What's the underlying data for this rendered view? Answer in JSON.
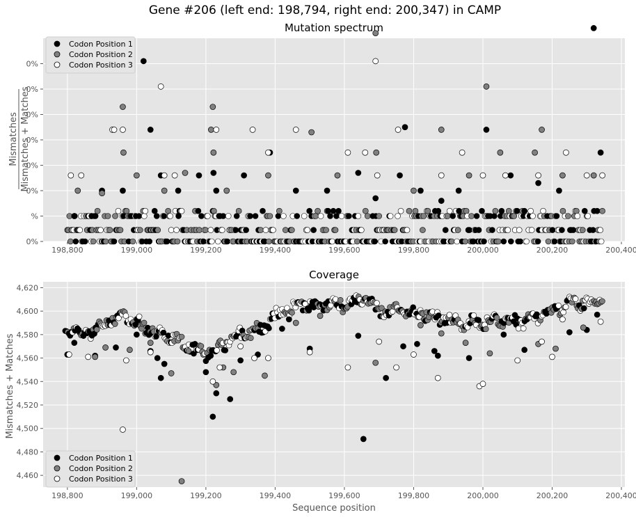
{
  "figure": {
    "title": "Gene #206 (left end: 198,794, right end: 200,347) in CAMP"
  },
  "legend": {
    "entries": [
      {
        "name": "Codon Position 1",
        "color": "#000000"
      },
      {
        "name": "Codon Position 2",
        "color": "#808080"
      },
      {
        "name": "Codon Position 3",
        "color": "#ffffff"
      }
    ],
    "placement_top": "upper-left",
    "placement_bottom": "lower-left"
  },
  "chart_data": [
    {
      "type": "scatter",
      "title": "Mutation spectrum",
      "ylabel_numerator": "Mismatches",
      "ylabel_denominator": "Mismatches + Matches",
      "xlabel": "",
      "xlim": [
        198730,
        200410
      ],
      "ylim": [
        0,
        8.0
      ],
      "xticks": [
        198800,
        199000,
        199200,
        199400,
        199600,
        199800,
        200000,
        200200,
        200400
      ],
      "xtick_labels": [
        "198,800",
        "199,000",
        "199,200",
        "199,400",
        "199,600",
        "199,800",
        "200,000",
        "200,200",
        "200,400"
      ],
      "yticks": [
        0,
        1,
        2,
        3,
        4,
        5,
        6,
        7
      ],
      "ytick_labels": [
        "0%",
        "%",
        "0%",
        "0%",
        "0%",
        "0%",
        "0%",
        "0%"
      ],
      "grid": true,
      "series": [
        {
          "name": "Codon Position 1",
          "color": "#000000",
          "points": [
            [
              198820,
              1
            ],
            [
              198870,
              1
            ],
            [
              198900,
              2
            ],
            [
              198960,
              2
            ],
            [
              199020,
              7.1
            ],
            [
              199040,
              4.4
            ],
            [
              199070,
              2.6
            ],
            [
              199120,
              2
            ],
            [
              199180,
              2.6
            ],
            [
              199222,
              2.7
            ],
            [
              199230,
              2
            ],
            [
              199310,
              2.6
            ],
            [
              199385,
              3.5
            ],
            [
              199460,
              2
            ],
            [
              199550,
              2
            ],
            [
              199640,
              2.7
            ],
            [
              199690,
              1.7
            ],
            [
              199760,
              2.6
            ],
            [
              199775,
              4.5
            ],
            [
              199820,
              2
            ],
            [
              199880,
              1.6
            ],
            [
              199930,
              2
            ],
            [
              200010,
              4.4
            ],
            [
              200080,
              2.6
            ],
            [
              200160,
              2.3
            ],
            [
              200220,
              2
            ],
            [
              200320,
              8.4
            ],
            [
              200340,
              3.5
            ]
          ]
        },
        {
          "name": "Codon Position 2",
          "color": "#808080",
          "points": [
            [
              198830,
              2
            ],
            [
              198900,
              1.9
            ],
            [
              198960,
              5.3
            ],
            [
              198962,
              3.5
            ],
            [
              199000,
              2.6
            ],
            [
              199080,
              2
            ],
            [
              199140,
              2.7
            ],
            [
              199215,
              4.4
            ],
            [
              199220,
              5.3
            ],
            [
              199222,
              3.5
            ],
            [
              199260,
              2
            ],
            [
              199380,
              2.6
            ],
            [
              199505,
              4.3
            ],
            [
              199580,
              2.6
            ],
            [
              199690,
              8.2
            ],
            [
              199692,
              3.5
            ],
            [
              199800,
              2
            ],
            [
              199880,
              4.4
            ],
            [
              199960,
              2.6
            ],
            [
              200010,
              6.1
            ],
            [
              200050,
              3.5
            ],
            [
              200150,
              3.5
            ],
            [
              200170,
              4.4
            ],
            [
              200230,
              2.6
            ],
            [
              200320,
              2.6
            ]
          ]
        },
        {
          "name": "Codon Position 3",
          "color": "#ffffff",
          "points": [
            [
              198810,
              2.6
            ],
            [
              198840,
              2.6
            ],
            [
              198930,
              4.4
            ],
            [
              198935,
              4.4
            ],
            [
              198960,
              4.4
            ],
            [
              199070,
              6.1
            ],
            [
              199080,
              2.6
            ],
            [
              199110,
              2.6
            ],
            [
              199230,
              4.4
            ],
            [
              199335,
              4.4
            ],
            [
              199380,
              3.5
            ],
            [
              199460,
              4.4
            ],
            [
              199610,
              3.5
            ],
            [
              199660,
              3.5
            ],
            [
              199690,
              7.1
            ],
            [
              199695,
              2.6
            ],
            [
              199755,
              4.4
            ],
            [
              199880,
              2.6
            ],
            [
              199940,
              3.5
            ],
            [
              200000,
              2.6
            ],
            [
              200065,
              2.6
            ],
            [
              200160,
              2.6
            ],
            [
              200240,
              3.5
            ],
            [
              200300,
              2.6
            ],
            [
              200345,
              2.6
            ]
          ]
        }
      ]
    },
    {
      "type": "scatter",
      "title": "Coverage",
      "ylabel": "Mismatches + Matches",
      "xlabel": "Sequence position",
      "xlim": [
        198730,
        200410
      ],
      "ylim": [
        4450,
        4625
      ],
      "xticks": [
        198800,
        199000,
        199200,
        199400,
        199600,
        199800,
        200000,
        200200,
        200400
      ],
      "xtick_labels": [
        "198,800",
        "199,000",
        "199,200",
        "199,400",
        "199,600",
        "199,800",
        "200,000",
        "200,200",
        "200,400"
      ],
      "yticks": [
        4460,
        4480,
        4500,
        4520,
        4540,
        4560,
        4580,
        4600,
        4620
      ],
      "ytick_labels": [
        "4,460",
        "4,480",
        "4,500",
        "4,520",
        "4,540",
        "4,560",
        "4,580",
        "4,600",
        "4,620"
      ],
      "grid": true,
      "trend": [
        [
          198794,
          4585
        ],
        [
          198850,
          4580
        ],
        [
          198900,
          4588
        ],
        [
          198960,
          4596
        ],
        [
          199000,
          4590
        ],
        [
          199060,
          4580
        ],
        [
          199120,
          4575
        ],
        [
          199160,
          4568
        ],
        [
          199200,
          4563
        ],
        [
          199240,
          4570
        ],
        [
          199300,
          4580
        ],
        [
          199360,
          4585
        ],
        [
          199420,
          4600
        ],
        [
          199480,
          4605
        ],
        [
          199540,
          4606
        ],
        [
          199600,
          4605
        ],
        [
          199660,
          4612
        ],
        [
          199700,
          4600
        ],
        [
          199760,
          4602
        ],
        [
          199820,
          4598
        ],
        [
          199880,
          4593
        ],
        [
          199940,
          4590
        ],
        [
          200000,
          4590
        ],
        [
          200060,
          4592
        ],
        [
          200120,
          4590
        ],
        [
          200180,
          4598
        ],
        [
          200240,
          4605
        ],
        [
          200300,
          4608
        ],
        [
          200347,
          4610
        ]
      ],
      "series": [
        {
          "name": "Codon Position 1",
          "color": "#000000",
          "points": [
            [
              198800,
              4563
            ],
            [
              198820,
              4573
            ],
            [
              198880,
              4562
            ],
            [
              198940,
              4569
            ],
            [
              199000,
              4580
            ],
            [
              199040,
              4566
            ],
            [
              199060,
              4560
            ],
            [
              199070,
              4543
            ],
            [
              199080,
              4555
            ],
            [
              199200,
              4548
            ],
            [
              199220,
              4510
            ],
            [
              199230,
              4530
            ],
            [
              199270,
              4525
            ],
            [
              199300,
              4558
            ],
            [
              199350,
              4563
            ],
            [
              199420,
              4585
            ],
            [
              199440,
              4593
            ],
            [
              199500,
              4568
            ],
            [
              199640,
              4579
            ],
            [
              199655,
              4491
            ],
            [
              199720,
              4543
            ],
            [
              199770,
              4570
            ],
            [
              199810,
              4572
            ],
            [
              199860,
              4566
            ],
            [
              199870,
              4562
            ],
            [
              199960,
              4560
            ],
            [
              200060,
              4580
            ],
            [
              200120,
              4567
            ],
            [
              200250,
              4582
            ],
            [
              200300,
              4584
            ],
            [
              200330,
              4597
            ]
          ]
        },
        {
          "name": "Codon Position 2",
          "color": "#808080",
          "points": [
            [
              198880,
              4561
            ],
            [
              198910,
              4569
            ],
            [
              198980,
              4567
            ],
            [
              199040,
              4573
            ],
            [
              199100,
              4547
            ],
            [
              199130,
              4455
            ],
            [
              199150,
              4566
            ],
            [
              199230,
              4537
            ],
            [
              199250,
              4552
            ],
            [
              199280,
              4548
            ],
            [
              199370,
              4545
            ],
            [
              199460,
              4590
            ],
            [
              199530,
              4596
            ],
            [
              199690,
              4556
            ],
            [
              199820,
              4588
            ],
            [
              199880,
              4581
            ],
            [
              199950,
              4573
            ],
            [
              200020,
              4564
            ],
            [
              200160,
              4572
            ],
            [
              200210,
              4568
            ],
            [
              200290,
              4586
            ]
          ]
        },
        {
          "name": "Codon Position 3",
          "color": "#ffffff",
          "points": [
            [
              198805,
              4563
            ],
            [
              198860,
              4561
            ],
            [
              198960,
              4499
            ],
            [
              198970,
              4558
            ],
            [
              199040,
              4565
            ],
            [
              199220,
              4540
            ],
            [
              199240,
              4552
            ],
            [
              199300,
              4570
            ],
            [
              199340,
              4560
            ],
            [
              199380,
              4560
            ],
            [
              199500,
              4565
            ],
            [
              199610,
              4552
            ],
            [
              199700,
              4574
            ],
            [
              199750,
              4552
            ],
            [
              199800,
              4563
            ],
            [
              199870,
              4543
            ],
            [
              199990,
              4536
            ],
            [
              200000,
              4538
            ],
            [
              200100,
              4558
            ],
            [
              200170,
              4574
            ],
            [
              200200,
              4561
            ],
            [
              200230,
              4593
            ],
            [
              200340,
              4591
            ]
          ]
        }
      ]
    }
  ]
}
